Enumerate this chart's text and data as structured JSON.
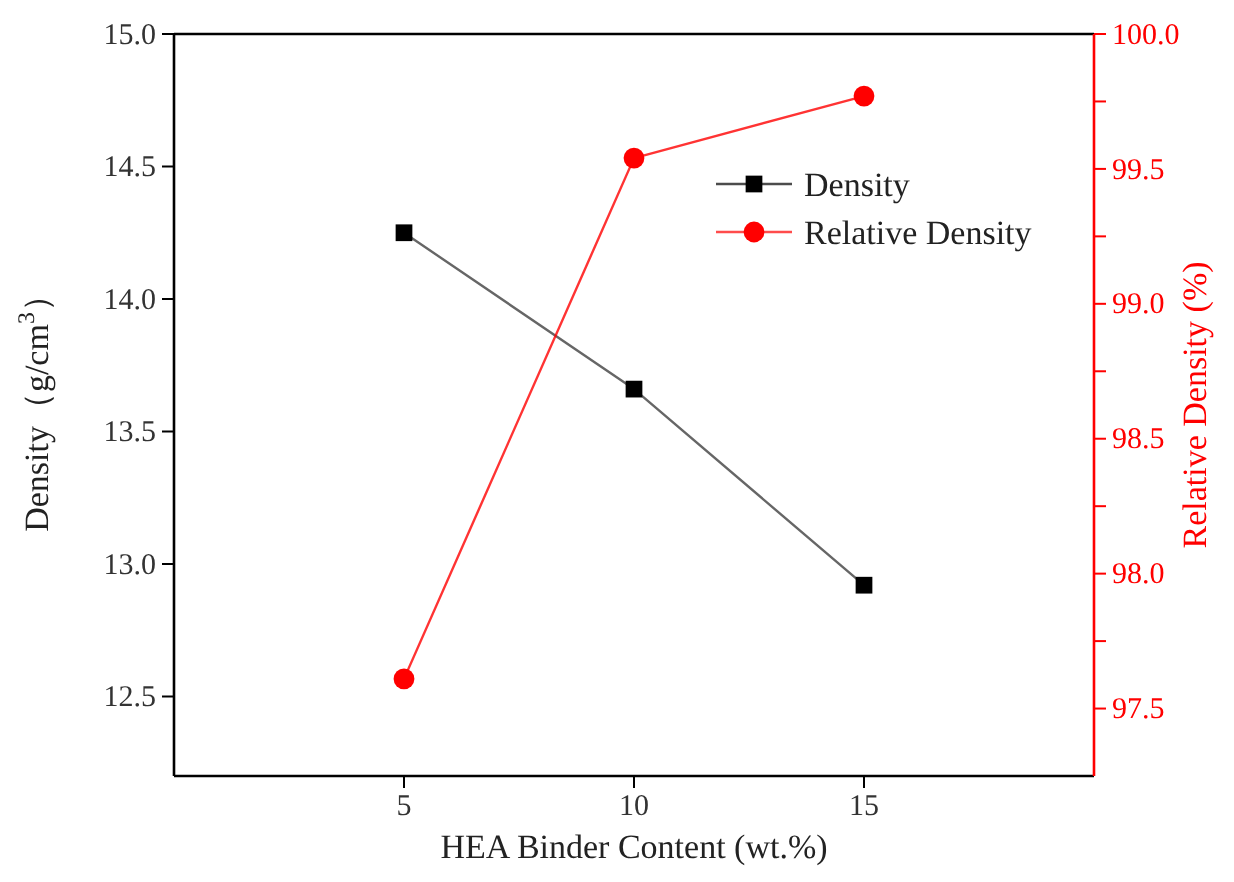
{
  "chart_data": {
    "type": "line",
    "xlabel": "HEA Binder Content (wt.%)",
    "ylabel": "Density（g/cm$^{3}$）",
    "y2label": "Relative Density (%)",
    "x": [
      5,
      10,
      15
    ],
    "xlim": [
      0,
      20
    ],
    "xticks": [
      5,
      10,
      15
    ],
    "ylim": [
      12.2,
      15
    ],
    "yticks": [
      12.5,
      {
        "value": 13,
        "label": "13.0"
      },
      13.5,
      {
        "value": 14,
        "label": "14.0"
      },
      14.5,
      {
        "value": 15,
        "label": "15.0"
      }
    ],
    "y2lim": [
      97.25,
      100
    ],
    "y2ticks": [
      97.5,
      {
        "value": 97.75,
        "label": null
      },
      {
        "value": 98,
        "label": "98.0"
      },
      {
        "value": 98.25,
        "label": null
      },
      98.5,
      {
        "value": 98.75,
        "label": null
      },
      {
        "value": 99,
        "label": "99.0"
      },
      {
        "value": 99.25,
        "label": null
      },
      99.5,
      {
        "value": 99.75,
        "label": null
      },
      {
        "value": 100,
        "label": "100.0"
      }
    ],
    "legend": "top right",
    "grid": false,
    "series": [
      {
        "name": "Density",
        "color": "#000000",
        "marker": "square",
        "values": [
          14.25,
          13.66,
          12.92
        ]
      },
      {
        "name": "Relative Density",
        "color": "#ff0000",
        "marker": "circle",
        "axis": "y2",
        "values": [
          97.61,
          99.54,
          99.77
        ]
      }
    ]
  }
}
